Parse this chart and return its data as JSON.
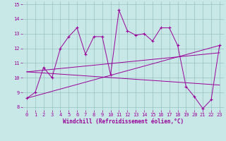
{
  "xlabel": "Windchill (Refroidissement éolien,°C)",
  "background_color": "#c8e8e8",
  "line_color": "#990099",
  "xlim": [
    -0.5,
    23.5
  ],
  "ylim": [
    7.8,
    15.2
  ],
  "yticks": [
    8,
    9,
    10,
    11,
    12,
    13,
    14,
    15
  ],
  "xticks": [
    0,
    1,
    2,
    3,
    4,
    5,
    6,
    7,
    8,
    9,
    10,
    11,
    12,
    13,
    14,
    15,
    16,
    17,
    18,
    19,
    20,
    21,
    22,
    23
  ],
  "series1_x": [
    0,
    1,
    2,
    3,
    4,
    5,
    6,
    7,
    8,
    9,
    10,
    11,
    12,
    13,
    14,
    15,
    16,
    17,
    18,
    19,
    20,
    21,
    22,
    23
  ],
  "series1_y": [
    8.6,
    9.0,
    10.7,
    10.0,
    12.0,
    12.8,
    13.4,
    11.6,
    12.8,
    12.8,
    10.2,
    14.6,
    13.2,
    12.9,
    13.0,
    12.5,
    13.4,
    13.4,
    12.2,
    9.4,
    8.7,
    7.9,
    8.5,
    12.2
  ],
  "trend1_x": [
    0,
    23
  ],
  "trend1_y": [
    8.6,
    12.2
  ],
  "trend2_x": [
    0,
    23
  ],
  "trend2_y": [
    10.4,
    9.5
  ],
  "trend3_x": [
    0,
    23
  ],
  "trend3_y": [
    10.4,
    11.7
  ],
  "tick_fontsize": 5.0,
  "xlabel_fontsize": 5.5
}
